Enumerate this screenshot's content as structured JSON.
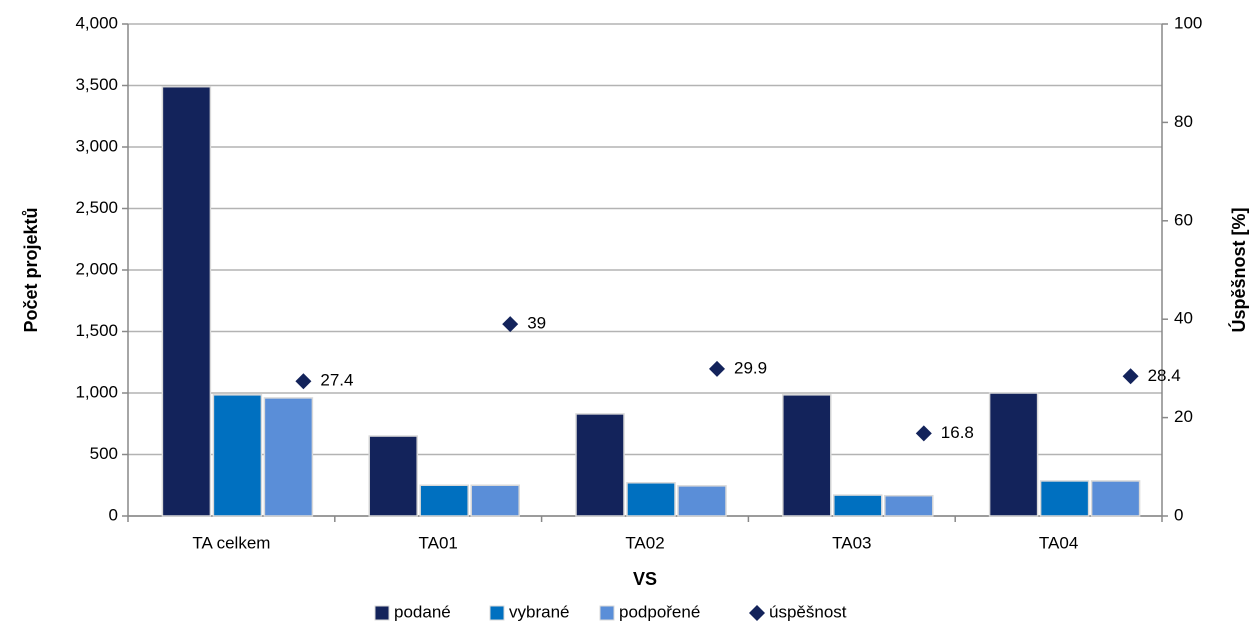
{
  "chart_data": {
    "type": "bar",
    "x_label": "VS",
    "y_label": "Počet projektů",
    "y2_label": "Úspěšnost [%]",
    "categories": [
      "TA celkem",
      "TA01",
      "TA02",
      "TA03",
      "TA04"
    ],
    "series": [
      {
        "name": "podané",
        "color": "#13235b",
        "values": [
          3490,
          650,
          830,
          985,
          1000
        ]
      },
      {
        "name": "vybrané",
        "color": "#0070c0",
        "values": [
          985,
          250,
          270,
          170,
          285
        ]
      },
      {
        "name": "podpořené",
        "color": "#5a8ed8",
        "values": [
          960,
          250,
          245,
          165,
          285
        ]
      },
      {
        "name": "úspěšnost",
        "color": "#13235b",
        "type": "scatter",
        "axis": "y2",
        "values": [
          27.4,
          39,
          29.9,
          16.8,
          28.4
        ]
      }
    ],
    "ylim": [
      0,
      4000
    ],
    "yticks": [
      0,
      500,
      {
        "value": 1000,
        "label": "1,000"
      },
      {
        "value": 1500,
        "label": "1,500"
      },
      {
        "value": 2000,
        "label": "2,000"
      },
      {
        "value": 2500,
        "label": "2,500"
      },
      {
        "value": 3000,
        "label": "3,000"
      },
      {
        "value": 3500,
        "label": "3,500"
      },
      {
        "value": 4000,
        "label": "4,000"
      }
    ],
    "y2lim": [
      0,
      100
    ],
    "y2ticks": [
      0,
      20,
      40,
      60,
      80,
      100
    ],
    "grid": true,
    "legend": "bottom"
  }
}
